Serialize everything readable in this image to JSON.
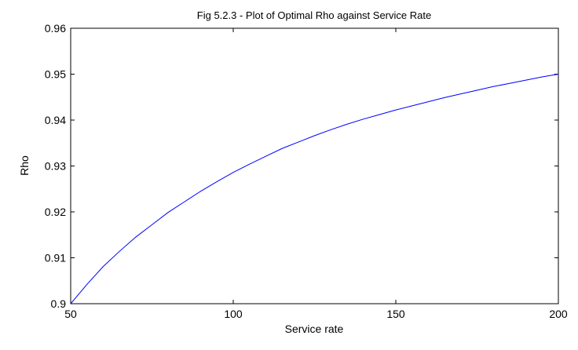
{
  "chart_data": {
    "type": "line",
    "title": "Fig 5.2.3 - Plot of Optimal Rho against Service Rate",
    "xlabel": "Service rate",
    "ylabel": "Rho",
    "xlim": [
      50,
      200
    ],
    "ylim": [
      0.9,
      0.96
    ],
    "x_ticks": [
      "50",
      "100",
      "150",
      "200"
    ],
    "y_ticks": [
      "0.9",
      "0.91",
      "0.92",
      "0.93",
      "0.94",
      "0.95",
      "0.96"
    ],
    "x_tick_values": [
      50,
      100,
      150,
      200
    ],
    "y_tick_values": [
      0.9,
      0.91,
      0.92,
      0.93,
      0.94,
      0.95,
      0.96
    ],
    "grid": false,
    "legend": "none",
    "line_color": "#0000ff",
    "series": [
      {
        "x": [
          50,
          55,
          60,
          65,
          70,
          75,
          80,
          85,
          90,
          95,
          100,
          105,
          110,
          115,
          120,
          125,
          130,
          135,
          140,
          145,
          150,
          155,
          160,
          165,
          170,
          175,
          180,
          185,
          190,
          195,
          200
        ],
        "values": [
          0.9,
          0.9042,
          0.9081,
          0.9114,
          0.9145,
          0.9172,
          0.9199,
          0.9222,
          0.9245,
          0.9266,
          0.9286,
          0.9304,
          0.9321,
          0.9338,
          0.9352,
          0.9366,
          0.9379,
          0.9391,
          0.9402,
          0.9412,
          0.9422,
          0.9431,
          0.944,
          0.9449,
          0.9457,
          0.9465,
          0.9473,
          0.948,
          0.9487,
          0.9494,
          0.95
        ]
      }
    ]
  }
}
